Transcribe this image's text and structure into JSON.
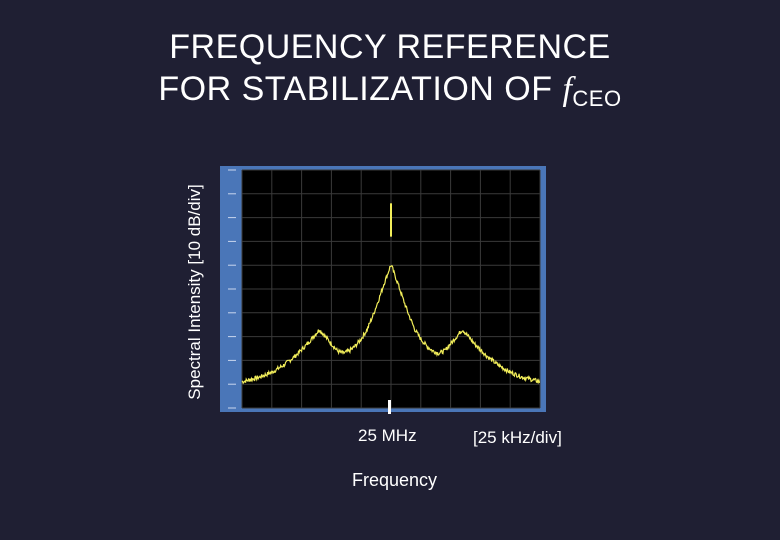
{
  "title": {
    "line1": "FREQUENCY REFERENCE",
    "line2_prefix": "FOR STABILIZATION OF ",
    "line2_symbol": "f",
    "line2_subscript": "CEO"
  },
  "colors": {
    "background": "#1f1f33",
    "plot_background": "#000000",
    "plot_frame": "#4a76b8",
    "trace": "#f2ee5a"
  },
  "chart_data": {
    "type": "line",
    "title": "FREQUENCY REFERENCE FOR STABILIZATION OF fCEO",
    "xlabel": "Frequency",
    "ylabel": "Spectral Intensity [10 dB/div]",
    "x_center_label": "25 MHz",
    "x_scale_label": "[25 kHz/div]",
    "x_units": "kHz offset from 25 MHz",
    "xlim": [
      -125,
      125
    ],
    "ylim_divisions": [
      0,
      10
    ],
    "y_units": "divisions above bottom (10 dB/div)",
    "grid": true,
    "series": [
      {
        "values_x": [
          -125,
          -110,
          -100,
          -90,
          -80,
          -70,
          -60,
          -50,
          -45,
          -40,
          -35,
          -30,
          -25,
          -20,
          -15,
          -10,
          -6,
          -3,
          -1,
          0,
          1,
          3,
          6,
          10,
          15,
          20,
          25,
          30,
          35,
          40,
          45,
          50,
          60,
          70,
          80,
          90,
          100,
          110,
          125
        ],
        "values_y": [
          1.1,
          1.3,
          1.5,
          1.8,
          2.2,
          2.7,
          3.3,
          2.7,
          2.4,
          2.3,
          2.4,
          2.6,
          2.9,
          3.3,
          3.9,
          4.6,
          5.2,
          5.6,
          5.9,
          6.0,
          5.9,
          5.6,
          5.2,
          4.6,
          3.9,
          3.3,
          2.9,
          2.6,
          2.4,
          2.3,
          2.4,
          2.7,
          3.3,
          2.7,
          2.2,
          1.8,
          1.5,
          1.3,
          1.1
        ]
      }
    ],
    "carrier_spike": {
      "x": 0,
      "y_from": 7.2,
      "y_to": 8.6
    }
  }
}
